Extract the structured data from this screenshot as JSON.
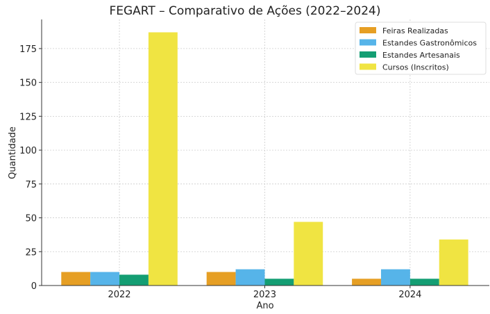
{
  "chart_data": {
    "type": "bar",
    "title": "FEGART – Comparativo de Ações (2022–2024)",
    "xlabel": "Ano",
    "ylabel": "Quantidade",
    "categories": [
      "2022",
      "2023",
      "2024"
    ],
    "ylim": [
      0,
      196.5
    ],
    "yticks": [
      0,
      25,
      50,
      75,
      100,
      125,
      150,
      175
    ],
    "grid": true,
    "legend_position": "top-right",
    "series": [
      {
        "name": "Feiras Realizadas",
        "color": "#E69F24",
        "values": [
          10,
          10,
          5
        ]
      },
      {
        "name": "Estandes Gastronômicos",
        "color": "#56B4E9",
        "values": [
          10,
          12,
          12
        ]
      },
      {
        "name": "Estandes Artesanais",
        "color": "#149E73",
        "values": [
          8,
          5,
          5
        ]
      },
      {
        "name": "Cursos (Inscritos)",
        "color": "#F0E442",
        "values": [
          187,
          47,
          34
        ]
      }
    ]
  }
}
